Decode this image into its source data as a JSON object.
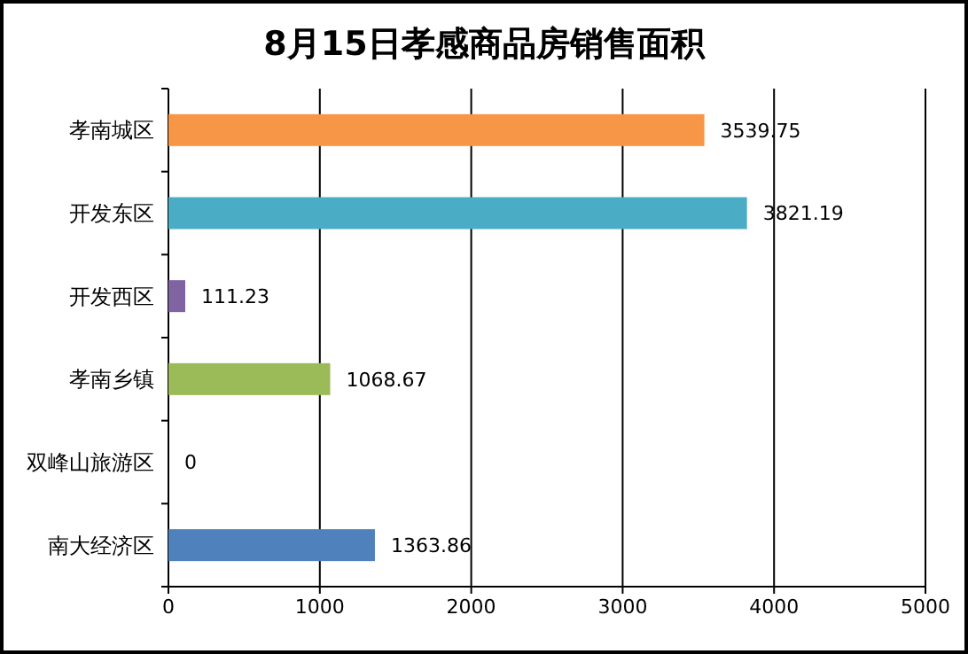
{
  "chart_data": {
    "type": "bar",
    "orientation": "horizontal",
    "title": "8月15日孝感商品房销售面积",
    "categories": [
      "孝南城区",
      "开发东区",
      "开发西区",
      "孝南乡镇",
      "双峰山旅游区",
      "南大经济区"
    ],
    "values": [
      3539.75,
      3821.19,
      111.23,
      1068.67,
      0,
      1363.86
    ],
    "colors": [
      "#f79646",
      "#4bacc6",
      "#8064a2",
      "#9bbb59",
      "#4f81bd",
      "#4f81bd"
    ],
    "xlim": [
      0,
      5000
    ],
    "xticks": [
      0,
      1000,
      2000,
      3000,
      4000,
      5000
    ],
    "grid": "x",
    "data_labels": true
  }
}
